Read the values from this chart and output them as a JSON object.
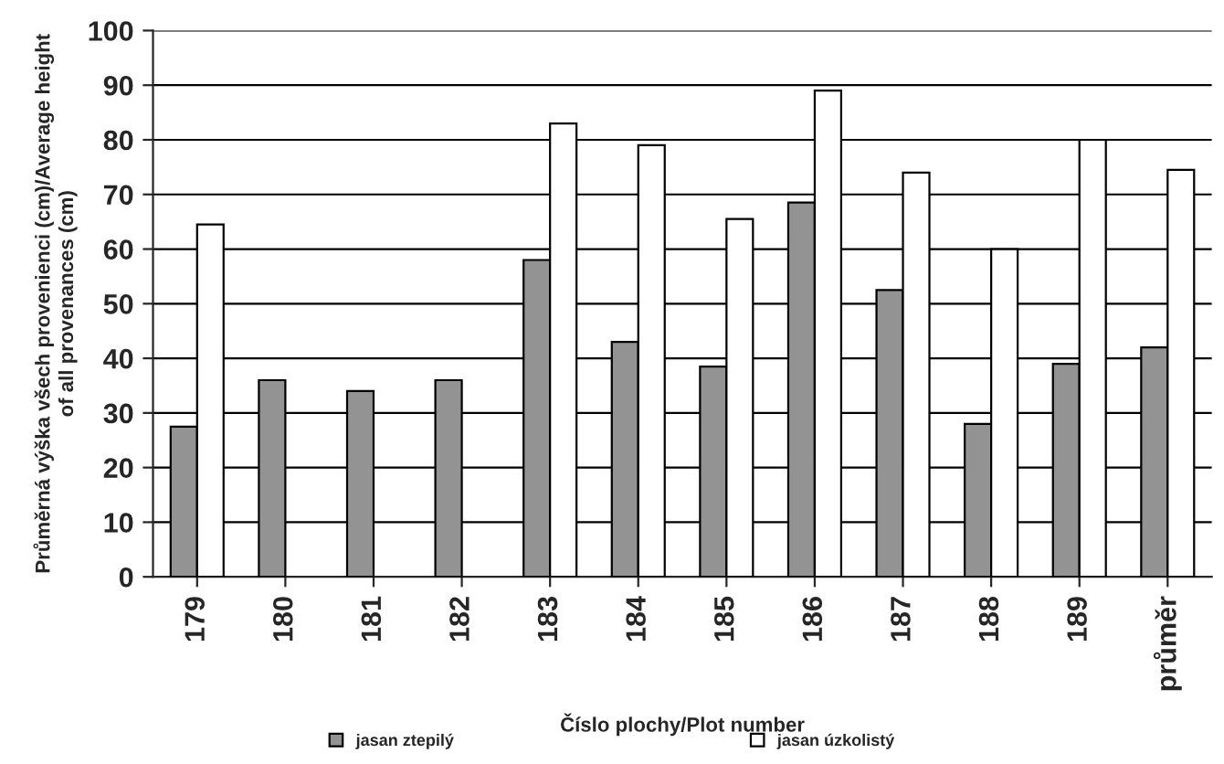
{
  "chart_data": {
    "type": "bar",
    "xlabel": "Číslo plochy/Plot number",
    "ylabel": "Průměrná výška všech provenienci (cm)/Average height\nof all provenances (cm)",
    "categories": [
      "179",
      "180",
      "181",
      "182",
      "183",
      "184",
      "185",
      "186",
      "187",
      "188",
      "189",
      "průměr"
    ],
    "series": [
      {
        "name": "jasan ztepilý",
        "color": "#939393",
        "values": [
          27.5,
          36,
          34,
          36,
          58,
          43,
          38.5,
          68.5,
          52.5,
          28,
          39,
          42
        ]
      },
      {
        "name": "jasan úzkolistý",
        "color": "#ffffff",
        "values": [
          64.5,
          null,
          null,
          null,
          83,
          79,
          65.5,
          89,
          74,
          60,
          80,
          74.5
        ]
      }
    ],
    "ylim": [
      0,
      100
    ],
    "yticks": [
      0,
      10,
      20,
      30,
      40,
      50,
      60,
      70,
      80,
      90,
      100
    ],
    "grid": "y",
    "legend": "bottom"
  }
}
